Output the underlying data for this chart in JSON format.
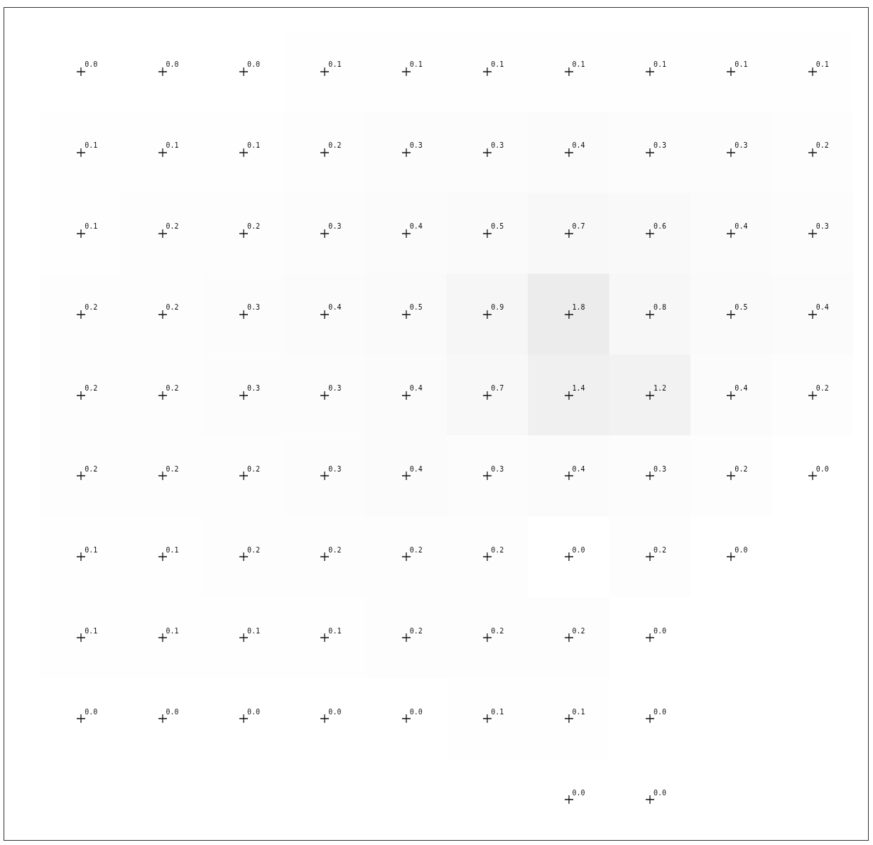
{
  "chart_data": {
    "type": "heatmap",
    "categories": [
      null,
      null,
      null,
      null,
      null,
      null,
      null,
      null,
      null,
      null
    ],
    "y_categories": [
      null,
      null,
      null,
      null,
      null,
      null,
      null,
      null,
      null,
      null
    ],
    "color": "#ffffff",
    "data_labels": true,
    "tick_labels": false,
    "cells": [
      [
        0.0,
        0.0,
        0.0,
        0.1,
        0.1,
        0.1,
        0.1,
        0.1,
        0.1,
        0.1
      ],
      [
        0.1,
        0.1,
        0.1,
        0.2,
        0.3,
        0.3,
        0.4,
        0.3,
        0.3,
        0.2
      ],
      [
        0.1,
        0.2,
        0.2,
        0.3,
        0.4,
        0.5,
        0.7,
        0.6,
        0.4,
        0.3
      ],
      [
        0.2,
        0.2,
        0.3,
        0.4,
        0.5,
        0.9,
        1.8,
        0.8,
        0.5,
        0.4
      ],
      [
        0.2,
        0.2,
        0.3,
        0.3,
        0.4,
        0.7,
        1.4,
        1.2,
        0.4,
        0.2
      ],
      [
        0.2,
        0.2,
        0.2,
        0.3,
        0.4,
        0.3,
        0.4,
        0.3,
        0.2,
        0.0
      ],
      [
        0.1,
        0.1,
        0.2,
        0.2,
        0.2,
        0.2,
        0.0,
        0.2,
        0.0,
        null
      ],
      [
        0.1,
        0.1,
        0.1,
        0.1,
        0.2,
        0.2,
        0.2,
        0.0,
        null,
        null
      ],
      [
        0.0,
        0.0,
        0.0,
        0.0,
        0.0,
        0.1,
        0.1,
        0.0,
        null,
        null
      ],
      [
        null,
        null,
        null,
        null,
        null,
        null,
        0.0,
        0.0,
        null,
        null
      ]
    ],
    "cell_labels": [
      [
        "0.0",
        "0.0",
        "0.0",
        "0.1",
        "0.1",
        "0.1",
        "0.1",
        "0.1",
        "0.1",
        "0.1"
      ],
      [
        "0.1",
        "0.1",
        "0.1",
        "0.2",
        "0.3",
        "0.3",
        "0.4",
        "0.3",
        "0.3",
        "0.2"
      ],
      [
        "0.1",
        "0.2",
        "0.2",
        "0.3",
        "0.4",
        "0.5",
        "0.7",
        "0.6",
        "0.4",
        "0.3"
      ],
      [
        "0.2",
        "0.2",
        "0.3",
        "0.4",
        "0.5",
        "0.9",
        "1.8",
        "0.8",
        "0.5",
        "0.4"
      ],
      [
        "0.2",
        "0.2",
        "0.3",
        "0.3",
        "0.4",
        "0.7",
        "1.4",
        "1.2",
        "0.4",
        "0.2"
      ],
      [
        "0.2",
        "0.2",
        "0.2",
        "0.3",
        "0.4",
        "0.3",
        "0.4",
        "0.3",
        "0.2",
        "0.0"
      ],
      [
        "0.1",
        "0.1",
        "0.2",
        "0.2",
        "0.2",
        "0.2",
        "0.0",
        "0.2",
        "0.0",
        null
      ],
      [
        "0.1",
        "0.1",
        "0.1",
        "0.1",
        "0.2",
        "0.2",
        "0.2",
        "0.0",
        null,
        null
      ],
      [
        "0.0",
        "0.0",
        "0.0",
        "0.0",
        "0.0",
        "0.1",
        "0.1",
        "0.0",
        null,
        null
      ],
      [
        null,
        null,
        null,
        null,
        null,
        null,
        "0.0",
        "0.0",
        null,
        null
      ]
    ]
  }
}
